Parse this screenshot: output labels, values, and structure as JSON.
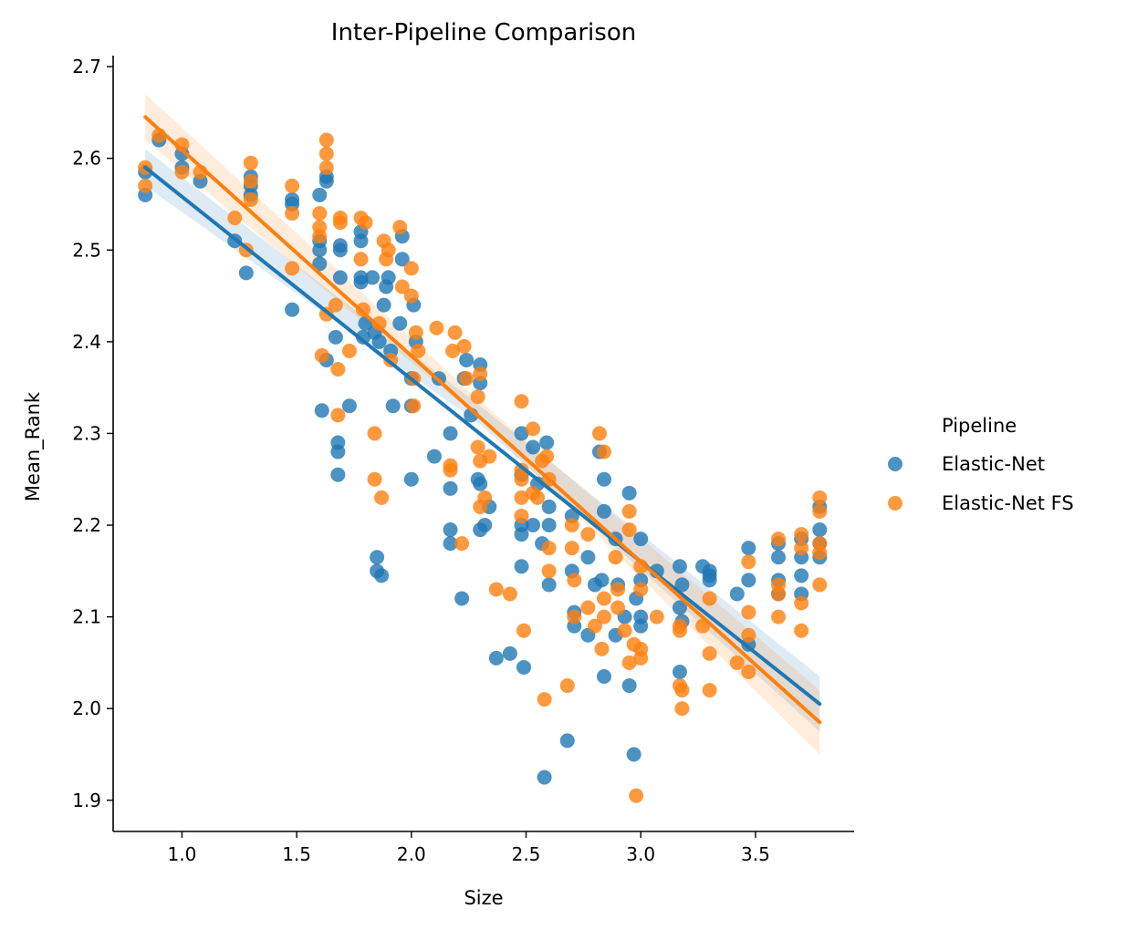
{
  "chart_data": {
    "type": "scatter",
    "title": "Inter-Pipeline Comparison",
    "xlabel": "Size",
    "ylabel": "Mean_Rank",
    "xlim": [
      0.7,
      3.93
    ],
    "ylim": [
      1.866,
      2.712
    ],
    "xticks": [
      "1.0",
      "1.5",
      "2.0",
      "2.5",
      "3.0",
      "3.5"
    ],
    "yticks": [
      "1.9",
      "2.0",
      "2.1",
      "2.2",
      "2.3",
      "2.4",
      "2.5",
      "2.6",
      "2.7"
    ],
    "grid": false,
    "legend": {
      "title": "Pipeline",
      "placement": "right"
    },
    "series": [
      {
        "name": "Elastic-Net",
        "color": "#1f77b4",
        "fit": {
          "x": [
            0.84,
            3.78
          ],
          "y": [
            2.59,
            2.005
          ]
        },
        "band": {
          "x": [
            0.84,
            2.3,
            3.78
          ],
          "lower": [
            2.57,
            2.31,
            1.975
          ],
          "upper": [
            2.61,
            2.33,
            2.035
          ]
        },
        "points": [
          [
            0.84,
            2.56
          ],
          [
            0.84,
            2.585
          ],
          [
            0.9,
            2.62
          ],
          [
            1.0,
            2.605
          ],
          [
            1.0,
            2.59
          ],
          [
            1.08,
            2.575
          ],
          [
            1.23,
            2.51
          ],
          [
            1.28,
            2.475
          ],
          [
            1.3,
            2.56
          ],
          [
            1.3,
            2.57
          ],
          [
            1.3,
            2.58
          ],
          [
            1.48,
            2.435
          ],
          [
            1.48,
            2.55
          ],
          [
            1.48,
            2.555
          ],
          [
            1.6,
            2.56
          ],
          [
            1.6,
            2.51
          ],
          [
            1.6,
            2.5
          ],
          [
            1.6,
            2.485
          ],
          [
            1.61,
            2.325
          ],
          [
            1.63,
            2.38
          ],
          [
            1.63,
            2.58
          ],
          [
            1.63,
            2.575
          ],
          [
            1.67,
            2.405
          ],
          [
            1.68,
            2.29
          ],
          [
            1.68,
            2.28
          ],
          [
            1.68,
            2.255
          ],
          [
            1.69,
            2.47
          ],
          [
            1.69,
            2.5
          ],
          [
            1.69,
            2.505
          ],
          [
            1.73,
            2.33
          ],
          [
            1.78,
            2.465
          ],
          [
            1.78,
            2.47
          ],
          [
            1.78,
            2.51
          ],
          [
            1.78,
            2.52
          ],
          [
            1.79,
            2.405
          ],
          [
            1.8,
            2.42
          ],
          [
            1.83,
            2.47
          ],
          [
            1.84,
            2.41
          ],
          [
            1.85,
            2.165
          ],
          [
            1.85,
            2.15
          ],
          [
            1.86,
            2.4
          ],
          [
            1.87,
            2.145
          ],
          [
            1.88,
            2.44
          ],
          [
            1.89,
            2.46
          ],
          [
            1.9,
            2.47
          ],
          [
            1.91,
            2.39
          ],
          [
            1.92,
            2.33
          ],
          [
            1.95,
            2.42
          ],
          [
            1.96,
            2.515
          ],
          [
            1.96,
            2.49
          ],
          [
            2.0,
            2.36
          ],
          [
            2.0,
            2.25
          ],
          [
            2.0,
            2.33
          ],
          [
            2.01,
            2.44
          ],
          [
            2.02,
            2.4
          ],
          [
            2.1,
            2.275
          ],
          [
            2.12,
            2.36
          ],
          [
            2.17,
            2.3
          ],
          [
            2.17,
            2.195
          ],
          [
            2.17,
            2.24
          ],
          [
            2.17,
            2.18
          ],
          [
            2.22,
            2.12
          ],
          [
            2.23,
            2.36
          ],
          [
            2.24,
            2.38
          ],
          [
            2.26,
            2.32
          ],
          [
            2.29,
            2.25
          ],
          [
            2.3,
            2.375
          ],
          [
            2.3,
            2.355
          ],
          [
            2.3,
            2.245
          ],
          [
            2.3,
            2.195
          ],
          [
            2.32,
            2.2
          ],
          [
            2.34,
            2.22
          ],
          [
            2.37,
            2.055
          ],
          [
            2.43,
            2.06
          ],
          [
            2.48,
            2.3
          ],
          [
            2.48,
            2.255
          ],
          [
            2.48,
            2.2
          ],
          [
            2.48,
            2.19
          ],
          [
            2.48,
            2.155
          ],
          [
            2.49,
            2.045
          ],
          [
            2.53,
            2.285
          ],
          [
            2.53,
            2.2
          ],
          [
            2.55,
            2.245
          ],
          [
            2.57,
            2.18
          ],
          [
            2.58,
            1.925
          ],
          [
            2.59,
            2.29
          ],
          [
            2.6,
            2.22
          ],
          [
            2.6,
            2.2
          ],
          [
            2.6,
            2.135
          ],
          [
            2.68,
            1.965
          ],
          [
            2.7,
            2.21
          ],
          [
            2.7,
            2.15
          ],
          [
            2.71,
            2.09
          ],
          [
            2.71,
            2.105
          ],
          [
            2.77,
            2.165
          ],
          [
            2.77,
            2.08
          ],
          [
            2.8,
            2.135
          ],
          [
            2.82,
            2.28
          ],
          [
            2.83,
            2.14
          ],
          [
            2.84,
            2.215
          ],
          [
            2.84,
            2.25
          ],
          [
            2.84,
            2.035
          ],
          [
            2.89,
            2.185
          ],
          [
            2.89,
            2.08
          ],
          [
            2.9,
            2.135
          ],
          [
            2.93,
            2.1
          ],
          [
            2.95,
            2.235
          ],
          [
            2.95,
            2.025
          ],
          [
            2.97,
            1.95
          ],
          [
            2.98,
            2.12
          ],
          [
            3.0,
            2.185
          ],
          [
            3.0,
            2.09
          ],
          [
            3.0,
            2.1
          ],
          [
            3.0,
            2.14
          ],
          [
            3.07,
            2.15
          ],
          [
            3.17,
            2.155
          ],
          [
            3.17,
            2.11
          ],
          [
            3.17,
            2.04
          ],
          [
            3.18,
            2.135
          ],
          [
            3.18,
            2.095
          ],
          [
            3.27,
            2.155
          ],
          [
            3.3,
            2.15
          ],
          [
            3.3,
            2.145
          ],
          [
            3.3,
            2.14
          ],
          [
            3.42,
            2.125
          ],
          [
            3.47,
            2.175
          ],
          [
            3.47,
            2.14
          ],
          [
            3.47,
            2.07
          ],
          [
            3.6,
            2.18
          ],
          [
            3.6,
            2.165
          ],
          [
            3.6,
            2.14
          ],
          [
            3.6,
            2.125
          ],
          [
            3.7,
            2.185
          ],
          [
            3.7,
            2.165
          ],
          [
            3.7,
            2.145
          ],
          [
            3.7,
            2.125
          ],
          [
            3.78,
            2.22
          ],
          [
            3.78,
            2.195
          ],
          [
            3.78,
            2.18
          ],
          [
            3.78,
            2.165
          ]
        ]
      },
      {
        "name": "Elastic-Net FS",
        "color": "#ff7f0e",
        "fit": {
          "x": [
            0.84,
            3.78
          ],
          "y": [
            2.645,
            1.985
          ]
        },
        "band": {
          "x": [
            0.84,
            2.3,
            3.78
          ],
          "lower": [
            2.62,
            2.315,
            1.95
          ],
          "upper": [
            2.67,
            2.335,
            2.02
          ]
        },
        "points": [
          [
            0.84,
            2.57
          ],
          [
            0.84,
            2.59
          ],
          [
            0.9,
            2.625
          ],
          [
            1.0,
            2.615
          ],
          [
            1.0,
            2.585
          ],
          [
            1.08,
            2.585
          ],
          [
            1.23,
            2.535
          ],
          [
            1.28,
            2.5
          ],
          [
            1.3,
            2.555
          ],
          [
            1.3,
            2.595
          ],
          [
            1.3,
            2.575
          ],
          [
            1.48,
            2.48
          ],
          [
            1.48,
            2.54
          ],
          [
            1.48,
            2.57
          ],
          [
            1.6,
            2.525
          ],
          [
            1.6,
            2.515
          ],
          [
            1.6,
            2.54
          ],
          [
            1.61,
            2.385
          ],
          [
            1.63,
            2.43
          ],
          [
            1.63,
            2.62
          ],
          [
            1.63,
            2.605
          ],
          [
            1.63,
            2.59
          ],
          [
            1.67,
            2.44
          ],
          [
            1.68,
            2.37
          ],
          [
            1.68,
            2.32
          ],
          [
            1.69,
            2.535
          ],
          [
            1.69,
            2.53
          ],
          [
            1.73,
            2.39
          ],
          [
            1.78,
            2.535
          ],
          [
            1.78,
            2.49
          ],
          [
            1.79,
            2.435
          ],
          [
            1.8,
            2.53
          ],
          [
            1.84,
            2.3
          ],
          [
            1.84,
            2.25
          ],
          [
            1.86,
            2.42
          ],
          [
            1.87,
            2.23
          ],
          [
            1.88,
            2.51
          ],
          [
            1.89,
            2.49
          ],
          [
            1.9,
            2.5
          ],
          [
            1.91,
            2.38
          ],
          [
            1.95,
            2.525
          ],
          [
            1.96,
            2.46
          ],
          [
            2.0,
            2.48
          ],
          [
            2.0,
            2.45
          ],
          [
            2.01,
            2.33
          ],
          [
            2.01,
            2.36
          ],
          [
            2.02,
            2.41
          ],
          [
            2.03,
            2.39
          ],
          [
            2.11,
            2.415
          ],
          [
            2.17,
            2.265
          ],
          [
            2.17,
            2.26
          ],
          [
            2.18,
            2.39
          ],
          [
            2.19,
            2.41
          ],
          [
            2.22,
            2.18
          ],
          [
            2.23,
            2.395
          ],
          [
            2.24,
            2.36
          ],
          [
            2.29,
            2.34
          ],
          [
            2.29,
            2.285
          ],
          [
            2.3,
            2.365
          ],
          [
            2.3,
            2.27
          ],
          [
            2.3,
            2.22
          ],
          [
            2.32,
            2.23
          ],
          [
            2.34,
            2.275
          ],
          [
            2.37,
            2.13
          ],
          [
            2.43,
            2.125
          ],
          [
            2.48,
            2.335
          ],
          [
            2.48,
            2.26
          ],
          [
            2.48,
            2.25
          ],
          [
            2.48,
            2.23
          ],
          [
            2.48,
            2.21
          ],
          [
            2.49,
            2.085
          ],
          [
            2.53,
            2.305
          ],
          [
            2.53,
            2.235
          ],
          [
            2.55,
            2.23
          ],
          [
            2.57,
            2.27
          ],
          [
            2.58,
            2.01
          ],
          [
            2.59,
            2.275
          ],
          [
            2.6,
            2.25
          ],
          [
            2.6,
            2.175
          ],
          [
            2.6,
            2.15
          ],
          [
            2.68,
            2.025
          ],
          [
            2.7,
            2.2
          ],
          [
            2.7,
            2.175
          ],
          [
            2.71,
            2.14
          ],
          [
            2.71,
            2.1
          ],
          [
            2.77,
            2.19
          ],
          [
            2.77,
            2.11
          ],
          [
            2.8,
            2.09
          ],
          [
            2.82,
            2.3
          ],
          [
            2.83,
            2.065
          ],
          [
            2.84,
            2.28
          ],
          [
            2.84,
            2.12
          ],
          [
            2.84,
            2.1
          ],
          [
            2.89,
            2.165
          ],
          [
            2.9,
            2.13
          ],
          [
            2.9,
            2.11
          ],
          [
            2.93,
            2.085
          ],
          [
            2.95,
            2.215
          ],
          [
            2.95,
            2.195
          ],
          [
            2.95,
            2.05
          ],
          [
            2.97,
            2.07
          ],
          [
            2.98,
            1.905
          ],
          [
            3.0,
            2.155
          ],
          [
            3.0,
            2.13
          ],
          [
            3.0,
            2.065
          ],
          [
            3.0,
            2.055
          ],
          [
            3.07,
            2.1
          ],
          [
            3.17,
            2.09
          ],
          [
            3.17,
            2.085
          ],
          [
            3.17,
            2.025
          ],
          [
            3.18,
            2.02
          ],
          [
            3.18,
            2.0
          ],
          [
            3.27,
            2.09
          ],
          [
            3.3,
            2.12
          ],
          [
            3.3,
            2.06
          ],
          [
            3.3,
            2.02
          ],
          [
            3.42,
            2.05
          ],
          [
            3.47,
            2.16
          ],
          [
            3.47,
            2.105
          ],
          [
            3.47,
            2.08
          ],
          [
            3.47,
            2.04
          ],
          [
            3.6,
            2.185
          ],
          [
            3.6,
            2.135
          ],
          [
            3.6,
            2.125
          ],
          [
            3.6,
            2.1
          ],
          [
            3.7,
            2.19
          ],
          [
            3.7,
            2.175
          ],
          [
            3.7,
            2.115
          ],
          [
            3.7,
            2.085
          ],
          [
            3.78,
            2.23
          ],
          [
            3.78,
            2.215
          ],
          [
            3.78,
            2.18
          ],
          [
            3.78,
            2.17
          ],
          [
            3.78,
            2.135
          ]
        ]
      }
    ]
  }
}
